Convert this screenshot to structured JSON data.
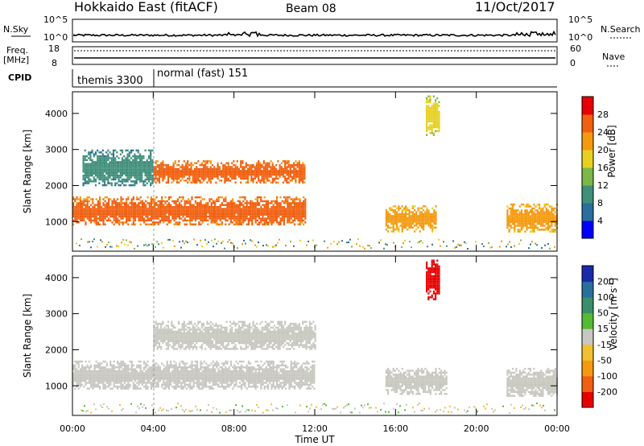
{
  "header": {
    "radar": "Hokkaido East (fitACF)",
    "beam": "Beam 08",
    "date": "11/Oct/2017"
  },
  "noise_panel": {
    "left_label": "N.Sky",
    "right_label": "N.Search",
    "left_ticks": [
      "10^5",
      "10^0"
    ],
    "right_ticks": [
      "10^5",
      "10^0"
    ]
  },
  "freq_panel": {
    "left_label_line1": "Freq.",
    "left_label_line2": "[MHz]",
    "right_label": "Nave",
    "left_ticks": [
      "18",
      "8"
    ],
    "right_ticks": [
      "60",
      "0"
    ]
  },
  "cpid": {
    "label": "CPID",
    "modes": [
      {
        "name": "themis 3300",
        "start_hour": 0,
        "end_hour": 4
      },
      {
        "name": "normal (fast) 151",
        "start_hour": 4,
        "end_hour": 24
      }
    ]
  },
  "power_panel": {
    "ylabel": "Slant Range [km]",
    "yticks": [
      "1000",
      "2000",
      "3000",
      "4000"
    ],
    "colorbar_label": "Power [dB]",
    "colorbar_ticks": [
      "4",
      "8",
      "12",
      "16",
      "20",
      "24",
      "28"
    ],
    "colorbar_colors": [
      "#0000ff",
      "#2a6e9e",
      "#3f8f7a",
      "#7ab84a",
      "#e8d020",
      "#f59a10",
      "#f06010",
      "#e80000"
    ]
  },
  "velocity_panel": {
    "ylabel": "Slant Range [km]",
    "yticks": [
      "1000",
      "2000",
      "3000",
      "4000"
    ],
    "colorbar_label": "Velocity [m s^-1]",
    "colorbar_ticks": [
      "200",
      "100",
      "50",
      "15",
      "-15",
      "-50",
      "-100",
      "-200"
    ],
    "colorbar_colors": [
      "#1a2aa8",
      "#2a6e9e",
      "#3a8f6a",
      "#55bb33",
      "#c8c8c0",
      "#f0c030",
      "#f59a10",
      "#f06010",
      "#e80000"
    ]
  },
  "xaxis": {
    "label": "Time UT",
    "ticks": [
      "00:00",
      "04:00",
      "08:00",
      "12:00",
      "16:00",
      "20:00",
      "00:00"
    ]
  },
  "chart_data": {
    "type": "heatmap",
    "x_range_hours": [
      0,
      24
    ],
    "y_range_km": [
      180,
      4600
    ],
    "power_regions": [
      {
        "t0": 0.0,
        "t1": 11.5,
        "r0": 900,
        "r1": 1700,
        "power_db": 28
      },
      {
        "t0": 4.0,
        "t1": 11.5,
        "r0": 2100,
        "r1": 2700,
        "power_db": 28
      },
      {
        "t0": 0.5,
        "t1": 4.0,
        "r0": 2000,
        "r1": 3000,
        "power_db": 12
      },
      {
        "t0": 15.5,
        "t1": 18.0,
        "r0": 750,
        "r1": 1450,
        "power_db": 24
      },
      {
        "t0": 21.5,
        "t1": 24.0,
        "r0": 700,
        "r1": 1500,
        "power_db": 24
      },
      {
        "t0": 17.5,
        "t1": 18.2,
        "r0": 3400,
        "r1": 4500,
        "power_db": 20
      }
    ],
    "velocity_regions": [
      {
        "t0": 0.0,
        "t1": 12.0,
        "r0": 900,
        "r1": 1700,
        "velocity": 0
      },
      {
        "t0": 4.0,
        "t1": 12.0,
        "r0": 2000,
        "r1": 2800,
        "velocity": 0
      },
      {
        "t0": 15.5,
        "t1": 18.5,
        "r0": 800,
        "r1": 1500,
        "velocity": 0
      },
      {
        "t0": 21.5,
        "t1": 24.0,
        "r0": 700,
        "r1": 1500,
        "velocity": 0
      },
      {
        "t0": 17.5,
        "t1": 18.2,
        "r0": 3400,
        "r1": 4500,
        "velocity": -200
      }
    ]
  }
}
